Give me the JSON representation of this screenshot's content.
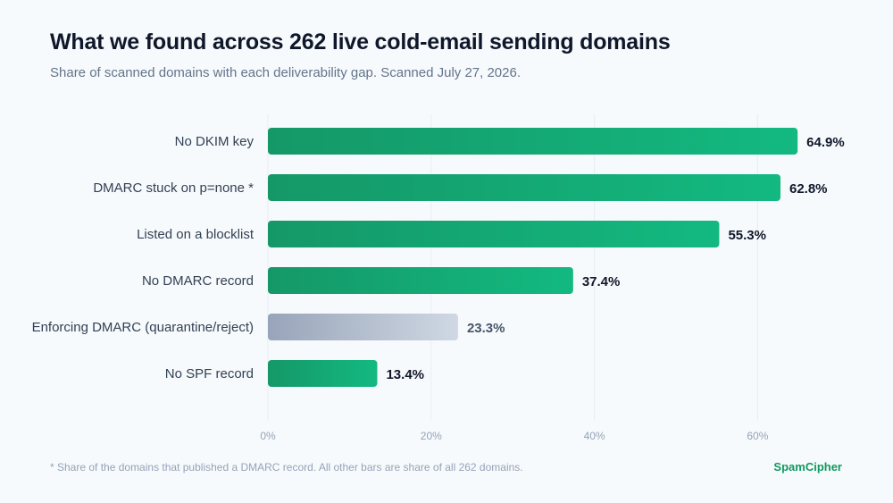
{
  "header": {
    "title": "What we found across 262 live cold-email sending domains",
    "subtitle": "Share of scanned domains with each deliverability gap. Scanned July 27, 2026."
  },
  "chart_data": {
    "type": "bar",
    "orientation": "horizontal",
    "categories": [
      "No DKIM key",
      "DMARC stuck on p=none *",
      "Listed on a blocklist",
      "No DMARC record",
      "Enforcing DMARC (quarantine/reject)",
      "No SPF record"
    ],
    "values": [
      64.9,
      62.8,
      55.3,
      37.4,
      23.3,
      13.4
    ],
    "value_labels": [
      "64.9%",
      "62.8%",
      "55.3%",
      "37.4%",
      "23.3%",
      "13.4%"
    ],
    "bar_styles": [
      "gap",
      "gap",
      "gap",
      "gap",
      "positive",
      "gap"
    ],
    "x_ticks": [
      0,
      20,
      40,
      60
    ],
    "x_tick_labels": [
      "0%",
      "20%",
      "40%",
      "60%"
    ],
    "xlim": [
      0,
      65
    ],
    "grid": true,
    "xlabel": "",
    "ylabel": ""
  },
  "footer": {
    "note": "* Share of the domains that published a DMARC record. All other bars are share of all 262 domains.",
    "brand": "SpamCipher"
  },
  "colors": {
    "gap_start": "#159868",
    "gap_end": "#13b981",
    "positive_start": "#98a4b9",
    "positive_end": "#cfd8e3",
    "brand": "#0f9a5f",
    "grid": "#e3edf2"
  }
}
